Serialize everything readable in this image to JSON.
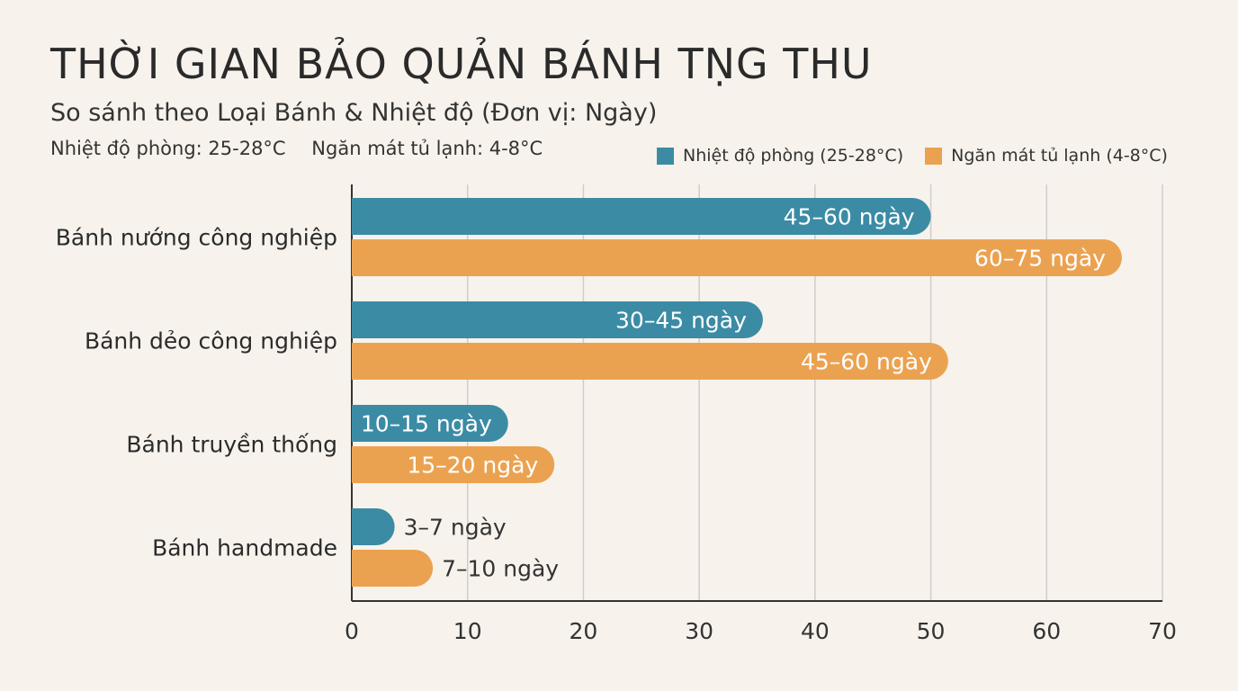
{
  "header": {
    "title": "THỜI GIAN BẢO QUẢN BÁNH TṆG THU",
    "subtitle": "So sánh theo Loại Bánh & Nhiệt độ (Đơn vị: Ngày)",
    "note_room": "Nhiệt độ phòng: 25-28°C",
    "note_fridge": "Ngăn mát tủ lạnh: 4-8°C"
  },
  "colors": {
    "room": "#3b8ba5",
    "fridge": "#eba250",
    "axis": "#333333",
    "grid": "#cfcccc"
  },
  "chart_data": {
    "type": "bar",
    "orientation": "horizontal",
    "categories": [
      "Bánh nướng công nghiệp",
      "Bánh dẻo công nghiệp",
      "Bánh truyền thống",
      "Bánh handmade"
    ],
    "series": [
      {
        "name": "Nhiệt độ phòng (25-28°C)",
        "values": [
          50,
          35.5,
          13.5,
          3.7
        ],
        "labels": [
          "45–60 ngày",
          "30–45 ngày",
          "10–15 ngày",
          "3–7 ngày"
        ]
      },
      {
        "name": "Ngăn mát tủ lạnh (4-8°C)",
        "values": [
          66.5,
          51.5,
          17.5,
          7
        ],
        "labels": [
          "60–75 ngày",
          "45–60 ngày",
          "15–20 ngày",
          "7–10 ngày"
        ]
      }
    ],
    "xlim": [
      0,
      70
    ],
    "xticks": [
      "0",
      "10",
      "20",
      "30",
      "40",
      "50",
      "60",
      "70"
    ],
    "grid": true,
    "legend_position": "top-right"
  }
}
